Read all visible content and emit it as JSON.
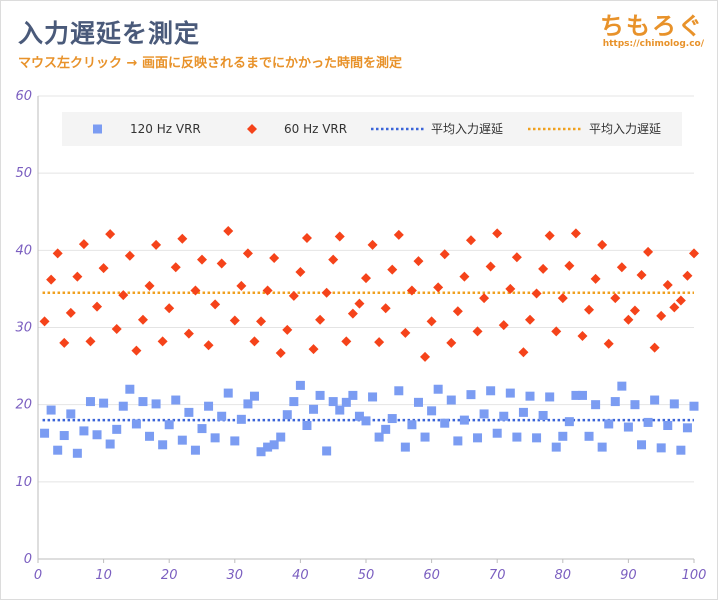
{
  "header": {
    "title": "入力遅延を測定",
    "subtitle": "マウス左クリック → 画面に反映されるまでにかかった時間を測定"
  },
  "logo": {
    "text": "ちもろぐ",
    "url": "https://chimolog.co/"
  },
  "colors": {
    "series_120": "#7b9cf2",
    "series_60": "#f5431a",
    "avg_120": "#3a64d8",
    "avg_60": "#f0a01e",
    "tick": "#7b5fc0",
    "grid": "#e4e4e4"
  },
  "chart_data": {
    "type": "scatter",
    "xlim": [
      0,
      100
    ],
    "ylim": [
      0,
      60
    ],
    "xticks": [
      0,
      10,
      20,
      30,
      40,
      50,
      60,
      70,
      80,
      90,
      100
    ],
    "yticks": [
      0,
      10,
      20,
      30,
      40,
      50,
      60
    ],
    "grid": "horizontal",
    "legend_position": "top",
    "x": [
      1,
      2,
      3,
      4,
      5,
      6,
      7,
      8,
      9,
      10,
      11,
      12,
      13,
      14,
      15,
      16,
      17,
      18,
      19,
      20,
      21,
      22,
      23,
      24,
      25,
      26,
      27,
      28,
      29,
      30,
      31,
      32,
      33,
      34,
      35,
      36,
      37,
      38,
      39,
      40,
      41,
      42,
      43,
      44,
      45,
      46,
      47,
      48,
      49,
      50,
      51,
      52,
      53,
      54,
      55,
      56,
      57,
      58,
      59,
      60,
      61,
      62,
      63,
      64,
      65,
      66,
      67,
      68,
      69,
      70,
      71,
      72,
      73,
      74,
      75,
      76,
      77,
      78,
      79,
      80,
      81,
      82,
      83,
      84,
      85,
      86,
      87,
      88,
      89,
      90,
      91,
      92,
      93,
      94,
      95,
      96,
      97,
      98,
      99,
      100
    ],
    "series": [
      {
        "name": "120 Hz VRR",
        "marker": "square",
        "values": [
          16.3,
          19.3,
          14.1,
          16.0,
          18.8,
          13.7,
          16.6,
          20.4,
          16.1,
          20.2,
          14.9,
          16.8,
          19.8,
          22.0,
          17.5,
          20.4,
          15.9,
          20.1,
          14.8,
          17.4,
          20.6,
          15.4,
          19.0,
          14.1,
          16.9,
          19.8,
          15.7,
          18.5,
          21.5,
          15.3,
          18.1,
          20.1,
          21.1,
          13.9,
          14.5,
          14.8,
          15.8,
          18.7,
          20.4,
          22.5,
          17.3,
          19.4,
          21.2,
          14.0,
          20.4,
          19.3,
          20.3,
          21.2,
          18.5,
          17.9,
          21.0,
          15.8,
          16.8,
          18.2,
          21.8,
          14.5,
          17.4,
          20.3,
          15.8,
          19.2,
          22.0,
          17.6,
          20.6,
          15.3,
          18.0,
          21.3,
          15.7,
          18.8,
          21.8,
          16.3,
          18.5,
          21.5,
          15.8,
          19.0,
          21.1,
          15.7,
          18.6,
          21.0,
          14.5,
          15.9,
          17.8,
          21.2,
          21.2,
          15.9,
          20.0,
          14.5,
          17.5,
          20.4,
          22.4,
          17.1,
          20.0,
          14.8,
          17.7,
          20.6,
          14.4,
          17.3,
          20.1,
          14.1,
          17.0,
          19.8
        ]
      },
      {
        "name": "60 Hz VRR",
        "marker": "diamond",
        "values": [
          30.8,
          36.2,
          39.6,
          28.0,
          31.9,
          36.6,
          40.8,
          28.2,
          32.7,
          37.7,
          42.1,
          29.8,
          34.2,
          39.3,
          27.0,
          31.0,
          35.4,
          40.7,
          28.2,
          32.5,
          37.8,
          41.5,
          29.2,
          34.8,
          38.8,
          27.7,
          33.0,
          38.3,
          42.5,
          30.9,
          35.4,
          39.6,
          28.2,
          30.8,
          34.8,
          39.0,
          26.7,
          29.7,
          34.1,
          37.2,
          41.6,
          27.2,
          31.0,
          34.5,
          38.8,
          41.8,
          28.2,
          31.8,
          33.1,
          36.4,
          40.7,
          28.1,
          32.5,
          37.5,
          42.0,
          29.3,
          34.8,
          38.6,
          26.2,
          30.8,
          35.2,
          39.5,
          28.0,
          32.1,
          36.6,
          41.3,
          29.5,
          33.8,
          37.9,
          42.2,
          30.3,
          35.0,
          39.1,
          26.8,
          31.0,
          34.4,
          37.6,
          41.9,
          29.5,
          33.8,
          38.0,
          42.2,
          28.9,
          32.3,
          36.3,
          40.7,
          27.9,
          33.8,
          37.8,
          31.0,
          32.2,
          36.8,
          39.8,
          27.4,
          31.5,
          35.5,
          32.6,
          33.5,
          36.7,
          39.6
        ]
      }
    ],
    "averages": [
      {
        "name": "平均入力遅延",
        "value": 18.0,
        "style": "dotted"
      },
      {
        "name": "平均入力遅延",
        "value": 34.5,
        "style": "dotted"
      }
    ]
  }
}
